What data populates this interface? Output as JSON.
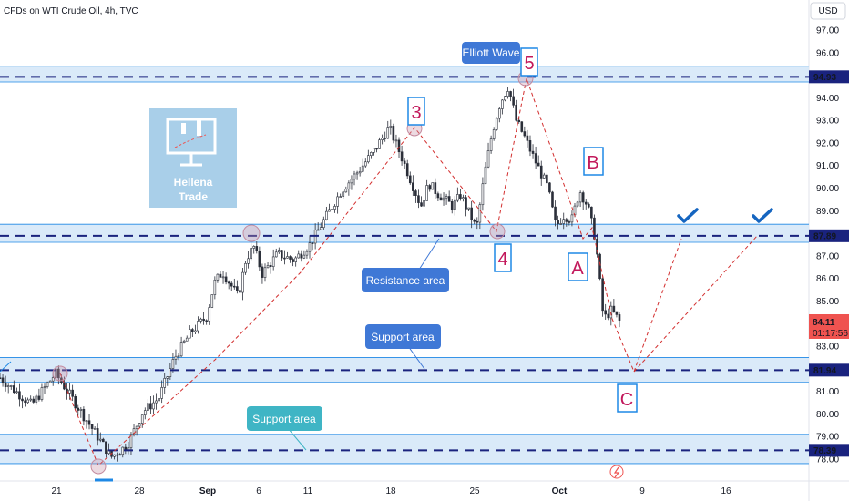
{
  "header": {
    "symbol_title": "CFDs on WTI Crude Oil, 4h, TVC",
    "currency_button": "USD"
  },
  "colors": {
    "up": "#26a69a",
    "down": "#ef5350",
    "candle": "#2a2e39",
    "zone_fill": "#d4e6f8",
    "zone_line": "#1e88e5",
    "dash": "#1a237e",
    "projection": "#d32f2f",
    "bubble": "#3f78d6",
    "bubble_teal": "#3fb5c5",
    "wave_label": "#c2185b",
    "wave_box": "#1e88e5",
    "last_price_bg": "#ef5350"
  },
  "chart_data": {
    "type": "candlestick",
    "title": "CFDs on WTI Crude Oil, 4h, TVC",
    "y_axis": {
      "unit": "USD",
      "ticks": [
        "97.00",
        "96.00",
        "95.00",
        "94.00",
        "93.00",
        "92.00",
        "91.00",
        "90.00",
        "89.00",
        "88.00",
        "87.00",
        "86.00",
        "85.00",
        "84.00",
        "83.00",
        "82.00",
        "81.00",
        "80.00",
        "79.00",
        "78.00"
      ],
      "range": [
        77.7,
        97.5
      ]
    },
    "x_axis": {
      "ticks": [
        "21",
        "28",
        "Sep",
        "6",
        "11",
        "18",
        "25",
        "Oct",
        "9",
        "16"
      ]
    },
    "price_path": [
      [
        0,
        81.6
      ],
      [
        4,
        80.4
      ],
      [
        7,
        81.8
      ],
      [
        10,
        80.2
      ],
      [
        14,
        78.1
      ],
      [
        16,
        78.6
      ],
      [
        18,
        80.1
      ],
      [
        20,
        80.7
      ],
      [
        22,
        82.5
      ],
      [
        24,
        83.6
      ],
      [
        26,
        84.3
      ],
      [
        27,
        85.8
      ],
      [
        28,
        86.3
      ],
      [
        30,
        85.2
      ],
      [
        31,
        86.9
      ],
      [
        32,
        87.4
      ],
      [
        33,
        86.2
      ],
      [
        35,
        87.1
      ],
      [
        37,
        86.8
      ],
      [
        39,
        87.5
      ],
      [
        41,
        88.7
      ],
      [
        43,
        89.9
      ],
      [
        45,
        90.7
      ],
      [
        47,
        91.6
      ],
      [
        49,
        92.7
      ],
      [
        51,
        91.0
      ],
      [
        53,
        89.2
      ],
      [
        54,
        90.2
      ],
      [
        55,
        89.8
      ],
      [
        57,
        89.2
      ],
      [
        58,
        89.7
      ],
      [
        60,
        88.2
      ],
      [
        61,
        90.6
      ],
      [
        62,
        92.5
      ],
      [
        63,
        93.8
      ],
      [
        64,
        94.5
      ],
      [
        65,
        93.0
      ],
      [
        66,
        92.3
      ],
      [
        67,
        91.5
      ],
      [
        69,
        90.0
      ],
      [
        70,
        88.3
      ],
      [
        71,
        88.8
      ],
      [
        72,
        88.6
      ],
      [
        73,
        89.9
      ],
      [
        74,
        89.2
      ],
      [
        75,
        87.7
      ],
      [
        76,
        84.2
      ],
      [
        77,
        84.6
      ],
      [
        78,
        84.11
      ]
    ],
    "horizontal_levels": [
      {
        "price": 94.93,
        "label": "94.93"
      },
      {
        "price": 87.89,
        "label": "87.89"
      },
      {
        "price": 81.94,
        "label": "81.94"
      },
      {
        "price": 78.39,
        "label": "78.39"
      }
    ],
    "zones": [
      {
        "from": 94.7,
        "to": 95.4
      },
      {
        "from": 87.6,
        "to": 88.4
      },
      {
        "from": 81.4,
        "to": 82.5
      },
      {
        "from": 77.8,
        "to": 79.1
      }
    ],
    "last_price": "84.11",
    "countdown": "01:17:56",
    "wave_labels": [
      "3",
      "4",
      "5",
      "A",
      "B",
      "C"
    ],
    "annotations": {
      "resistance": "Resistance area",
      "support_upper": "Support area",
      "support_lower": "Support area",
      "elliott": "Elliott Wave",
      "logo": [
        "Hellena",
        "Trade"
      ]
    },
    "grid": false
  }
}
